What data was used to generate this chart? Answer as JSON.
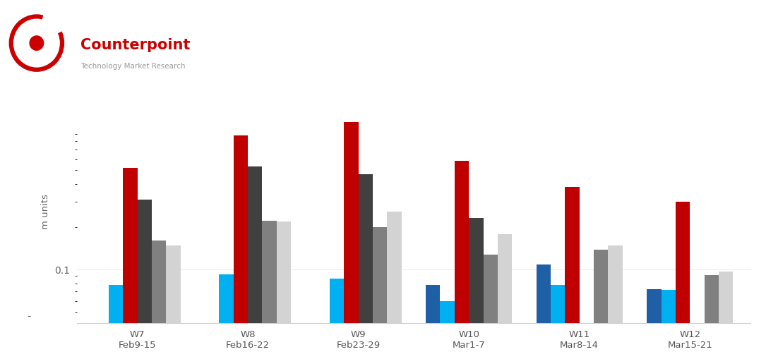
{
  "weeks": [
    "W7\nFeb9-15",
    "W8\nFeb16-22",
    "W9\nFeb23-29",
    "W10\nMar1-7",
    "W11\nMar8-14",
    "W12\nMar15-21"
  ],
  "series": {
    "Galaxy S20 Series": {
      "color": "#1f5fa6",
      "values": [
        null,
        null,
        null,
        0.078,
        0.108,
        0.073
      ]
    },
    "Galaxy S10 Series": {
      "color": "#00b0f0",
      "values": [
        0.078,
        0.093,
        0.086,
        0.06,
        0.078,
        0.072
      ]
    },
    "iPhone 11": {
      "color": "#c00000",
      "values": [
        0.52,
        0.88,
        1.1,
        0.58,
        0.38,
        0.3
      ]
    },
    "iPhone 11 Pro Max": {
      "color": "#404040",
      "values": [
        0.31,
        0.53,
        0.47,
        0.23,
        null,
        null
      ]
    },
    "iPhone 11 Pro": {
      "color": "#808080",
      "values": [
        0.16,
        0.22,
        0.2,
        0.128,
        0.138,
        0.092
      ]
    },
    "iPhone XR": {
      "color": "#d3d3d3",
      "values": [
        0.148,
        0.218,
        0.255,
        0.178,
        0.148,
        0.097
      ]
    }
  },
  "ylabel": "m units",
  "ymin": 0.042,
  "ymax": 1.55,
  "logo_text_main": "Counterpoint",
  "logo_text_sub": "Technology Market Research",
  "background_color": "#ffffff",
  "bar_width": 0.13
}
